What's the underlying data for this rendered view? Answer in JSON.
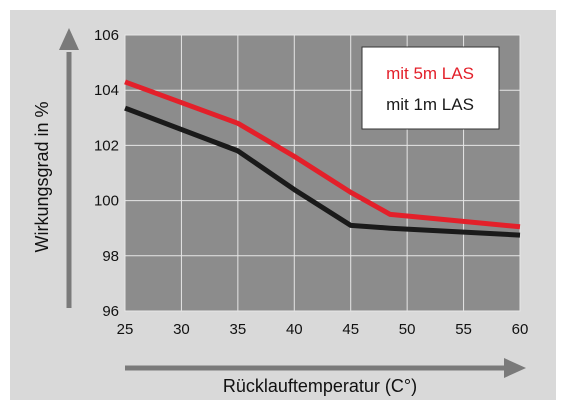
{
  "colors": {
    "panel_bg": "#d9d9d9",
    "plot_bg": "#8c8c8c",
    "grid": "#e6e6e6",
    "arrow": "#7a7a7a",
    "legend_bg": "#ffffff",
    "series_5m": "#e3202a",
    "series_1m": "#1a1a1a"
  },
  "chart_data": {
    "type": "line",
    "xlabel": "Rücklauftemperatur (C°)",
    "ylabel": "Wirkungsgrad in %",
    "xlim": [
      25,
      60
    ],
    "ylim": [
      96,
      106
    ],
    "xticks": [
      25,
      30,
      35,
      40,
      45,
      50,
      55,
      60
    ],
    "yticks": [
      96,
      98,
      100,
      102,
      104,
      106
    ],
    "grid": true,
    "legend": {
      "placement": "top-right",
      "entries": [
        "mit 5m LAS",
        "mit 1m LAS"
      ]
    },
    "series": [
      {
        "name": "mit 5m LAS",
        "color": "#e3202a",
        "x": [
          25,
          35,
          40,
          45,
          48.5,
          60
        ],
        "y": [
          104.3,
          102.8,
          101.6,
          100.3,
          99.5,
          99.05
        ]
      },
      {
        "name": "mit 1m LAS",
        "color": "#1a1a1a",
        "x": [
          25,
          35,
          40,
          45,
          48.5,
          60
        ],
        "y": [
          103.35,
          101.8,
          100.4,
          99.1,
          99.0,
          98.75
        ]
      }
    ]
  }
}
